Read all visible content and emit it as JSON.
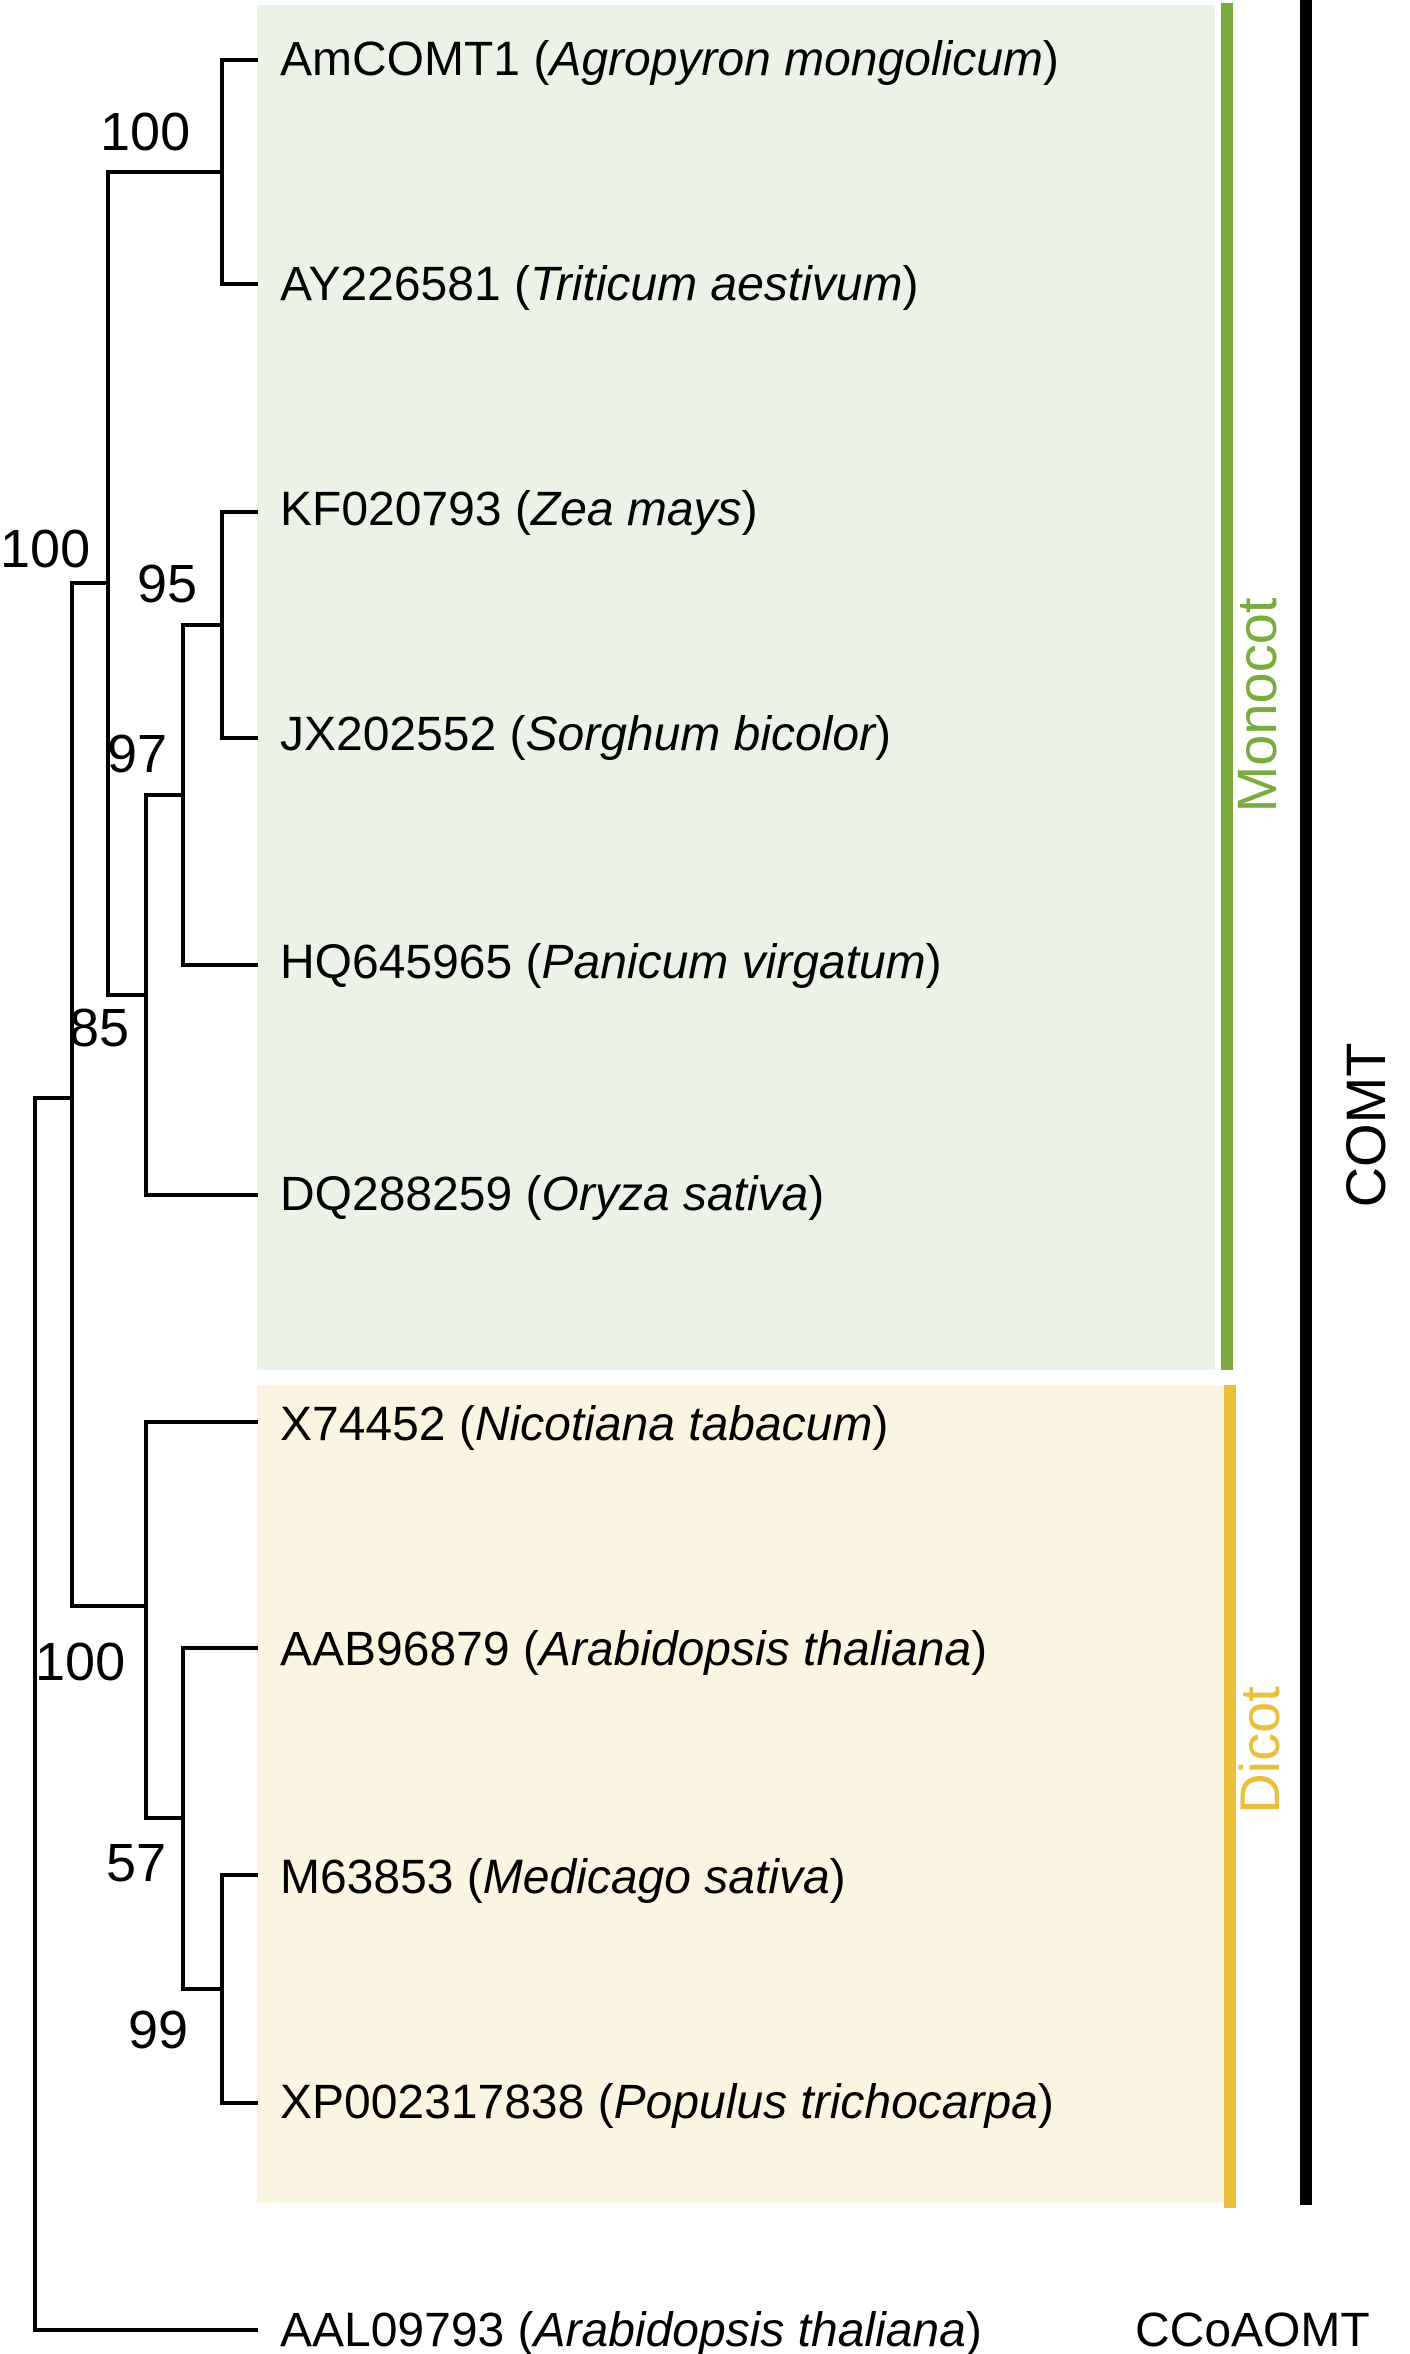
{
  "groups": {
    "monocot": {
      "label": "Monocot",
      "color": "#7aab3e",
      "bg": "#ebf3e7"
    },
    "dicot": {
      "label": "Dicot",
      "color": "#eabf3c",
      "bg": "#fbf4e0"
    },
    "comt": {
      "label": "COMT",
      "color": "#000000"
    },
    "ccoaomt": {
      "label": "CCoAOMT"
    }
  },
  "taxa": [
    {
      "acc": "AmCOMT1",
      "species": "Agropyron mongolicum"
    },
    {
      "acc": "AY226581",
      "species": "Triticum aestivum"
    },
    {
      "acc": "KF020793",
      "species": "Zea mays"
    },
    {
      "acc": "JX202552",
      "species": "Sorghum bicolor"
    },
    {
      "acc": "HQ645965",
      "species": "Panicum virgatum"
    },
    {
      "acc": "DQ288259",
      "species": "Oryza sativa"
    },
    {
      "acc": "X74452",
      "species": "Nicotiana tabacum"
    },
    {
      "acc": "AAB96879",
      "species": "Arabidopsis thaliana"
    },
    {
      "acc": "M63853",
      "species": "Medicago sativa"
    },
    {
      "acc": "XP002317838",
      "species": "Populus trichocarpa"
    },
    {
      "acc": "AAL09793",
      "species": "Arabidopsis thaliana"
    }
  ],
  "bootstrap": {
    "amcomt_triticum": "100",
    "monocot_clade": "100",
    "zea_sorghum": "95",
    "with_panicum": "97",
    "with_oryza": "85",
    "dicot_clade": "100",
    "arab_med_pop": "57",
    "med_pop": "99"
  }
}
